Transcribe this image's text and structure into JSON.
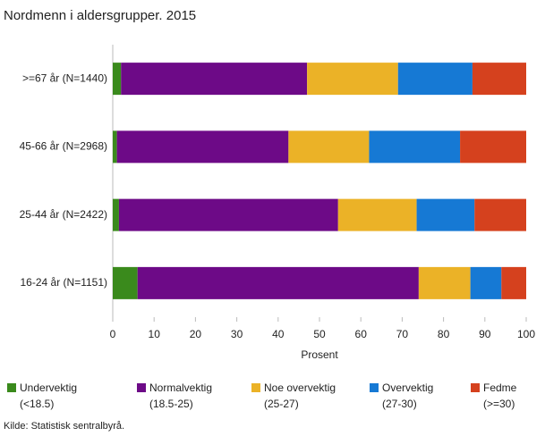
{
  "chart_data": {
    "type": "stacked-barh",
    "title": "Nordmenn i aldersgrupper. 2015",
    "x_label": "Prosent",
    "source": "Kilde: Statistisk sentralbyrå.",
    "categories": [
      ">=67 år (N=1440)",
      "45-66 år (N=2968)",
      "25-44 år (N=2422)",
      "16-24 år (N=1151)"
    ],
    "series": [
      {
        "name": "Undervektig",
        "range": "(<18.5)",
        "color": "#3a8a1c",
        "values": [
          2,
          1,
          1.5,
          6
        ]
      },
      {
        "name": "Normalvektig",
        "range": "(18.5-25)",
        "color": "#6d0a87",
        "values": [
          45,
          41.5,
          53,
          68
        ]
      },
      {
        "name": "Noe overvektig",
        "range": "(25-27)",
        "color": "#ebb227",
        "values": [
          22,
          19.5,
          19,
          12.5
        ]
      },
      {
        "name": "Overvektig",
        "range": "(27-30)",
        "color": "#1679d4",
        "values": [
          18,
          22,
          14,
          7.5
        ]
      },
      {
        "name": "Fedme",
        "range": "(>=30)",
        "color": "#d5411e",
        "values": [
          13,
          16,
          12.5,
          6
        ]
      }
    ],
    "xlim": [
      0,
      100
    ],
    "xticks": [
      0,
      10,
      20,
      30,
      40,
      50,
      60,
      70,
      80,
      90,
      100
    ]
  }
}
